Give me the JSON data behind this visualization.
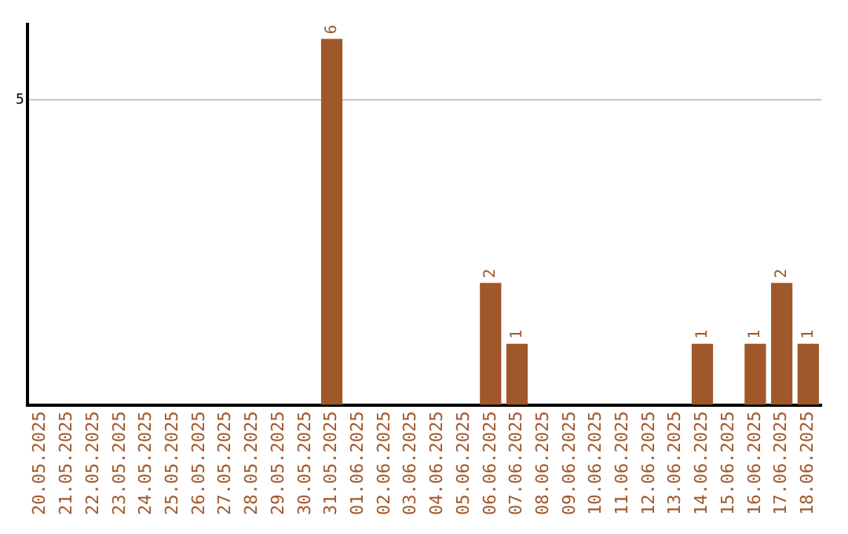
{
  "chart_data": {
    "type": "bar",
    "categories": [
      "20.05.2025",
      "21.05.2025",
      "22.05.2025",
      "23.05.2025",
      "24.05.2025",
      "25.05.2025",
      "26.05.2025",
      "27.05.2025",
      "28.05.2025",
      "29.05.2025",
      "30.05.2025",
      "31.05.2025",
      "01.06.2025",
      "02.06.2025",
      "03.06.2025",
      "04.06.2025",
      "05.06.2025",
      "06.06.2025",
      "07.06.2025",
      "08.06.2025",
      "09.06.2025",
      "10.06.2025",
      "11.06.2025",
      "12.06.2025",
      "13.06.2025",
      "14.06.2025",
      "15.06.2025",
      "16.06.2025",
      "17.06.2025",
      "18.06.2025"
    ],
    "values": [
      0,
      0,
      0,
      0,
      0,
      0,
      0,
      0,
      0,
      0,
      0,
      6,
      0,
      0,
      0,
      0,
      0,
      2,
      1,
      0,
      0,
      0,
      0,
      0,
      0,
      1,
      0,
      1,
      2,
      1
    ],
    "value_labels": [
      null,
      null,
      null,
      null,
      null,
      null,
      null,
      null,
      null,
      null,
      null,
      "6",
      null,
      null,
      null,
      null,
      null,
      "2",
      "1",
      null,
      null,
      null,
      null,
      null,
      null,
      "1",
      null,
      "1",
      "2",
      "1"
    ],
    "color": "#a0572a",
    "ylim": [
      0,
      6.24
    ],
    "yticks": [
      5
    ],
    "grid": "y",
    "legend": false
  }
}
